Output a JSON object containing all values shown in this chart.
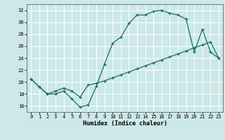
{
  "xlabel": "Humidex (Indice chaleur)",
  "bg_color": "#cce8e8",
  "grid_color": "#ffffff",
  "line_color": "#1a6b6b",
  "xlim": [
    -0.5,
    23.5
  ],
  "ylim": [
    15,
    33
  ],
  "xticks": [
    0,
    1,
    2,
    3,
    4,
    5,
    6,
    7,
    8,
    9,
    10,
    11,
    12,
    13,
    14,
    15,
    16,
    17,
    18,
    19,
    20,
    21,
    22,
    23
  ],
  "yticks": [
    16,
    18,
    20,
    22,
    24,
    26,
    28,
    30,
    32
  ],
  "line1_x": [
    0,
    1,
    2,
    3,
    4,
    5,
    6,
    7,
    8,
    9,
    10,
    11,
    12,
    13,
    14,
    15,
    16,
    17,
    18,
    19,
    20,
    21,
    22,
    23
  ],
  "line1_y": [
    20.5,
    19.2,
    18.0,
    18.0,
    18.5,
    17.2,
    15.8,
    16.2,
    19.3,
    23.0,
    26.5,
    27.5,
    29.8,
    31.2,
    31.2,
    31.8,
    32.0,
    31.5,
    31.2,
    30.5,
    25.0,
    28.8,
    25.0,
    24.0
  ],
  "line2_x": [
    0,
    1,
    2,
    3,
    4,
    5,
    6,
    7,
    8,
    9,
    10,
    11,
    12,
    13,
    14,
    15,
    16,
    17,
    18,
    19,
    20,
    21,
    22,
    23
  ],
  "line2_y": [
    20.5,
    19.2,
    18.0,
    18.5,
    19.0,
    18.5,
    17.5,
    19.5,
    19.8,
    20.2,
    20.7,
    21.2,
    21.7,
    22.2,
    22.7,
    23.2,
    23.7,
    24.2,
    24.7,
    25.2,
    25.7,
    26.2,
    26.7,
    24.0
  ],
  "xlabel_fontsize": 6.0,
  "tick_fontsize": 5.0
}
